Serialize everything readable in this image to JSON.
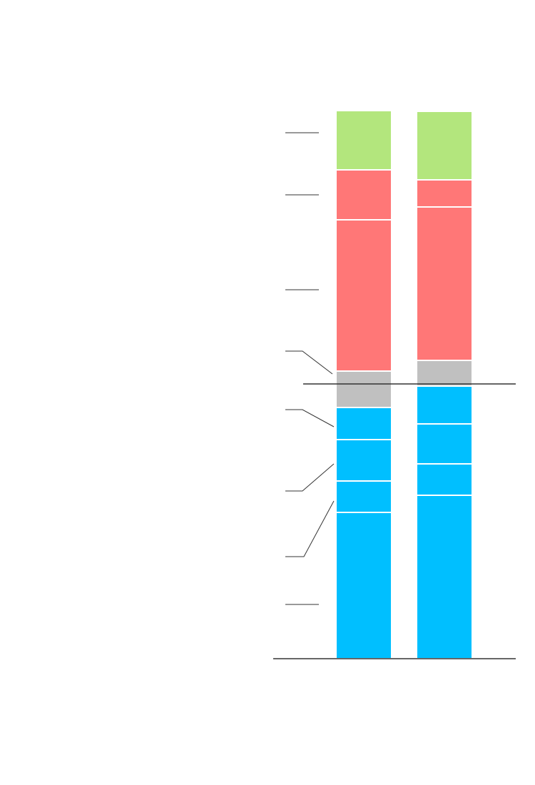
{
  "chart_data": {
    "type": "bar",
    "stacked": true,
    "categories": [
      null,
      null
    ],
    "series": [
      {
        "color": "#00bfff",
        "values": [
          205,
          229
        ]
      },
      {
        "color": "#00bfff",
        "values": [
          44,
          44
        ]
      },
      {
        "color": "#00bfff",
        "values": [
          58,
          56
        ]
      },
      {
        "color": "#00bfff",
        "values": [
          45,
          53
        ]
      },
      {
        "color": "#c0c0c0",
        "values": [
          51,
          36
        ]
      },
      {
        "color": "#ff7777",
        "values": [
          212,
          215
        ]
      },
      {
        "color": "#ff7777",
        "values": [
          70,
          38
        ]
      },
      {
        "color": "#b3e67d",
        "values": [
          83,
          96
        ]
      }
    ],
    "ylim": [
      0,
      780
    ]
  }
}
